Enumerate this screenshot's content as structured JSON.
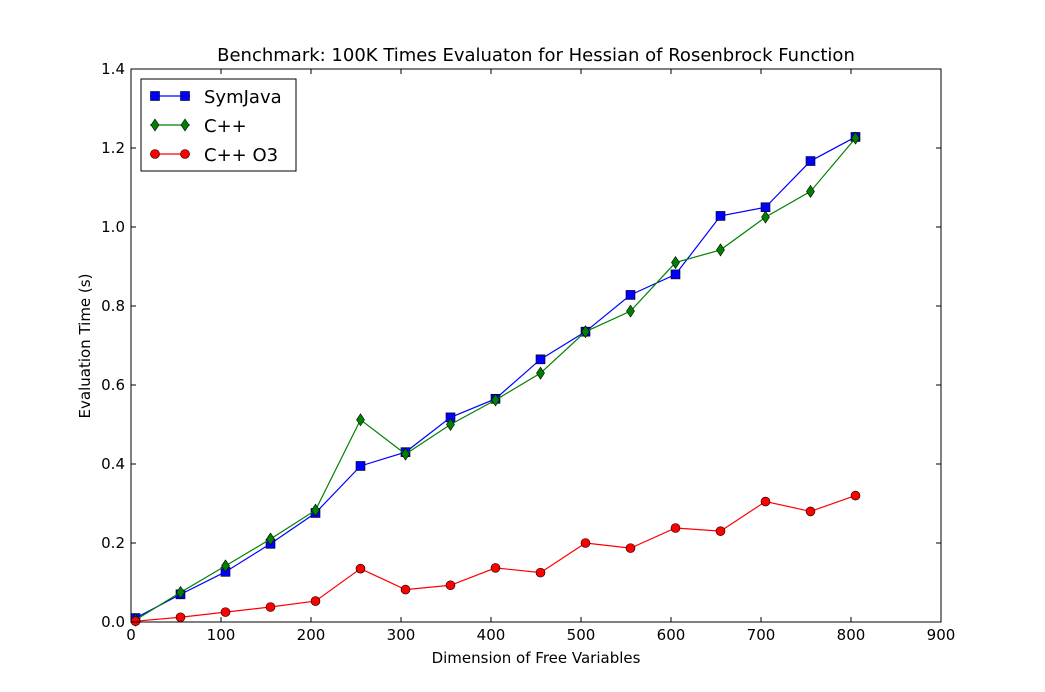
{
  "chart_data": {
    "type": "line",
    "title": "Benchmark: 100K Times Evaluaton for Hessian of Rosenbrock Function",
    "xlabel": "Dimension of Free Variables",
    "ylabel": "Evaluation Time (s)",
    "xlim": [
      0,
      900
    ],
    "ylim": [
      0,
      1.4
    ],
    "x_ticks": [
      "0",
      "100",
      "200",
      "300",
      "400",
      "500",
      "600",
      "700",
      "800",
      "900"
    ],
    "y_ticks": [
      "0.0",
      "0.2",
      "0.4",
      "0.6",
      "0.8",
      "1.0",
      "1.2",
      "1.4"
    ],
    "grid": false,
    "legend_position": "top-left",
    "x": [
      5,
      55,
      105,
      155,
      205,
      255,
      305,
      355,
      405,
      455,
      505,
      555,
      605,
      655,
      705,
      755,
      805
    ],
    "series": [
      {
        "name": "SymJava",
        "color": "#0000ff",
        "marker": "square",
        "values": [
          0.01,
          0.07,
          0.127,
          0.198,
          0.276,
          0.395,
          0.43,
          0.518,
          0.565,
          0.665,
          0.735,
          0.828,
          0.88,
          1.028,
          1.05,
          1.167,
          1.228
        ]
      },
      {
        "name": "C++",
        "color": "#008000",
        "marker": "diamond",
        "values": [
          0.005,
          0.075,
          0.142,
          0.21,
          0.283,
          0.512,
          0.425,
          0.5,
          0.562,
          0.63,
          0.735,
          0.787,
          0.91,
          0.942,
          1.025,
          1.09,
          1.225
        ]
      },
      {
        "name": "C++ O3",
        "color": "#ff0000",
        "marker": "circle",
        "values": [
          0.002,
          0.012,
          0.025,
          0.038,
          0.053,
          0.135,
          0.082,
          0.093,
          0.137,
          0.125,
          0.2,
          0.187,
          0.238,
          0.23,
          0.305,
          0.28,
          0.32
        ]
      }
    ]
  }
}
